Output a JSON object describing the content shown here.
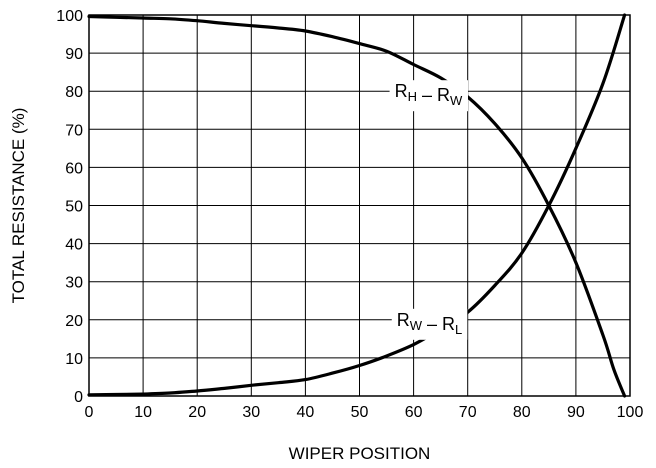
{
  "chart_data": {
    "type": "line",
    "xlabel": "WIPER POSITION",
    "ylabel": "TOTAL RESISTANCE (%)",
    "xlim": [
      0,
      100
    ],
    "ylim": [
      0,
      100
    ],
    "x_ticks": [
      "0",
      "10",
      "20",
      "30",
      "40",
      "50",
      "60",
      "70",
      "80",
      "90",
      "100"
    ],
    "y_ticks": [
      "0",
      "10",
      "20",
      "30",
      "40",
      "50",
      "60",
      "70",
      "80",
      "90",
      "100"
    ],
    "grid": true,
    "legend": "none",
    "series": [
      {
        "name": "R_H – R_W",
        "label_parts": [
          {
            "t": "R",
            "sub": false
          },
          {
            "t": "H",
            "sub": true
          },
          {
            "t": " – R",
            "sub": false
          },
          {
            "t": "W",
            "sub": true
          }
        ],
        "label_at": [
          69,
          80
        ],
        "x": [
          0,
          5,
          10,
          15,
          20,
          25,
          30,
          35,
          40,
          45,
          50,
          55,
          60,
          65,
          70,
          75,
          80,
          85,
          90,
          95,
          97,
          99
        ],
        "y": [
          99.6,
          99.4,
          99.2,
          99,
          98.5,
          97.8,
          97.2,
          96.6,
          95.8,
          94.3,
          92.5,
          90.5,
          87,
          83.5,
          78.5,
          71.5,
          62.5,
          50,
          35,
          16,
          7,
          0
        ]
      },
      {
        "name": "R_W – R_L",
        "label_parts": [
          {
            "t": "R",
            "sub": false
          },
          {
            "t": "W",
            "sub": true
          },
          {
            "t": " – R",
            "sub": false
          },
          {
            "t": "L",
            "sub": true
          }
        ],
        "label_at": [
          69,
          20
        ],
        "x": [
          0,
          5,
          10,
          15,
          20,
          25,
          30,
          35,
          40,
          45,
          50,
          55,
          60,
          65,
          70,
          75,
          80,
          85,
          90,
          95,
          99
        ],
        "y": [
          0.3,
          0.4,
          0.5,
          0.8,
          1.3,
          2,
          2.8,
          3.5,
          4.3,
          6,
          8,
          10.5,
          13.5,
          17.5,
          22,
          29,
          37.5,
          50,
          65,
          82,
          100
        ]
      }
    ]
  }
}
